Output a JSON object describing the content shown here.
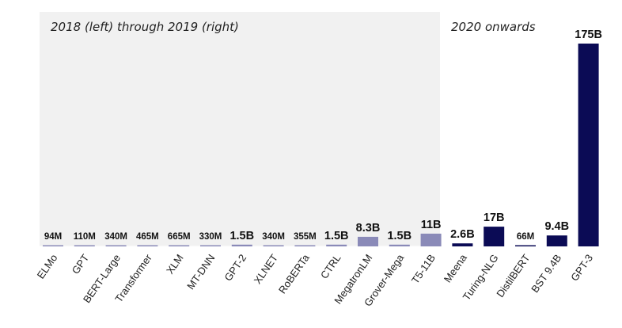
{
  "chart_data": {
    "type": "bar",
    "title": "",
    "xlabel": "",
    "ylabel": "",
    "ylim": [
      0,
      175
    ],
    "value_unit": "billions of parameters",
    "grid": false,
    "legend": "none",
    "regions": [
      {
        "label": "2018 (left) through 2019 (right)",
        "from": "ELMo",
        "to": "T5-11B",
        "background": "#f1f1f1"
      },
      {
        "label": "2020 onwards",
        "from": "Meena",
        "to": "GPT-3",
        "background": "#ffffff"
      }
    ],
    "bars": [
      {
        "name": "ELMo",
        "value": 0.094,
        "label": "94M",
        "era": "old"
      },
      {
        "name": "GPT",
        "value": 0.11,
        "label": "110M",
        "era": "old"
      },
      {
        "name": "BERT-Large",
        "value": 0.34,
        "label": "340M",
        "era": "old"
      },
      {
        "name": "Transformer",
        "value": 0.465,
        "label": "465M",
        "era": "old"
      },
      {
        "name": "XLM",
        "value": 0.665,
        "label": "665M",
        "era": "old"
      },
      {
        "name": "MT-DNN",
        "value": 0.33,
        "label": "330M",
        "era": "old"
      },
      {
        "name": "GPT-2",
        "value": 1.5,
        "label": "1.5B",
        "era": "old"
      },
      {
        "name": "XLNET",
        "value": 0.34,
        "label": "340M",
        "era": "old"
      },
      {
        "name": "RoBERTa",
        "value": 0.355,
        "label": "355M",
        "era": "old"
      },
      {
        "name": "CTRL",
        "value": 1.5,
        "label": "1.5B",
        "era": "old"
      },
      {
        "name": "MegatronLM",
        "value": 8.3,
        "label": "8.3B",
        "era": "old"
      },
      {
        "name": "Grover-Mega",
        "value": 1.5,
        "label": "1.5B",
        "era": "old"
      },
      {
        "name": "T5-11B",
        "value": 11,
        "label": "11B",
        "era": "old"
      },
      {
        "name": "Meena",
        "value": 2.6,
        "label": "2.6B",
        "era": "new"
      },
      {
        "name": "Turing-NLG",
        "value": 17,
        "label": "17B",
        "era": "new"
      },
      {
        "name": "DistilBERT",
        "value": 0.066,
        "label": "66M",
        "era": "new"
      },
      {
        "name": "BST 9.4B",
        "value": 9.4,
        "label": "9.4B",
        "era": "new"
      },
      {
        "name": "GPT-3",
        "value": 175,
        "label": "175B",
        "era": "new"
      }
    ],
    "colors": {
      "old_bar": "#8a8ab8",
      "new_bar": "#0b0b55",
      "old_region_bg": "#f1f1f1",
      "text": "#111111"
    }
  }
}
